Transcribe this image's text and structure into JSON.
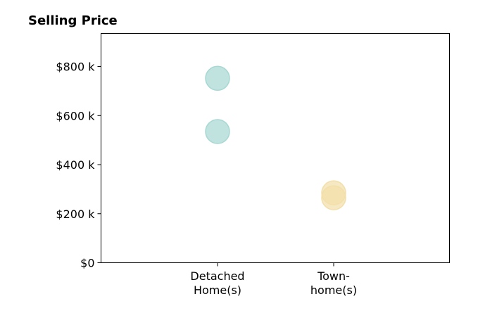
{
  "chart_data": {
    "type": "scatter",
    "title": "Selling Price",
    "xlabel": "",
    "ylabel": "",
    "categories": [
      [
        "Detached",
        "Home(s)"
      ],
      [
        "Town-",
        "home(s)"
      ]
    ],
    "points": [
      {
        "category": 0,
        "value": 752000,
        "color": "#a8d8d4"
      },
      {
        "category": 0,
        "value": 535000,
        "color": "#a8d8d4"
      },
      {
        "category": 1,
        "value": 285000,
        "color": "#f2dfaa"
      },
      {
        "category": 1,
        "value": 265000,
        "color": "#f2dfaa"
      }
    ],
    "ylim": [
      0,
      935000
    ],
    "yticks": [
      {
        "value": 0,
        "label": "$0"
      },
      {
        "value": 200000,
        "label": "$200 k"
      },
      {
        "value": 400000,
        "label": "$400 k"
      },
      {
        "value": 600000,
        "label": "$600 k"
      },
      {
        "value": 800000,
        "label": "$800 k"
      }
    ],
    "grid": false,
    "legend": "none"
  }
}
